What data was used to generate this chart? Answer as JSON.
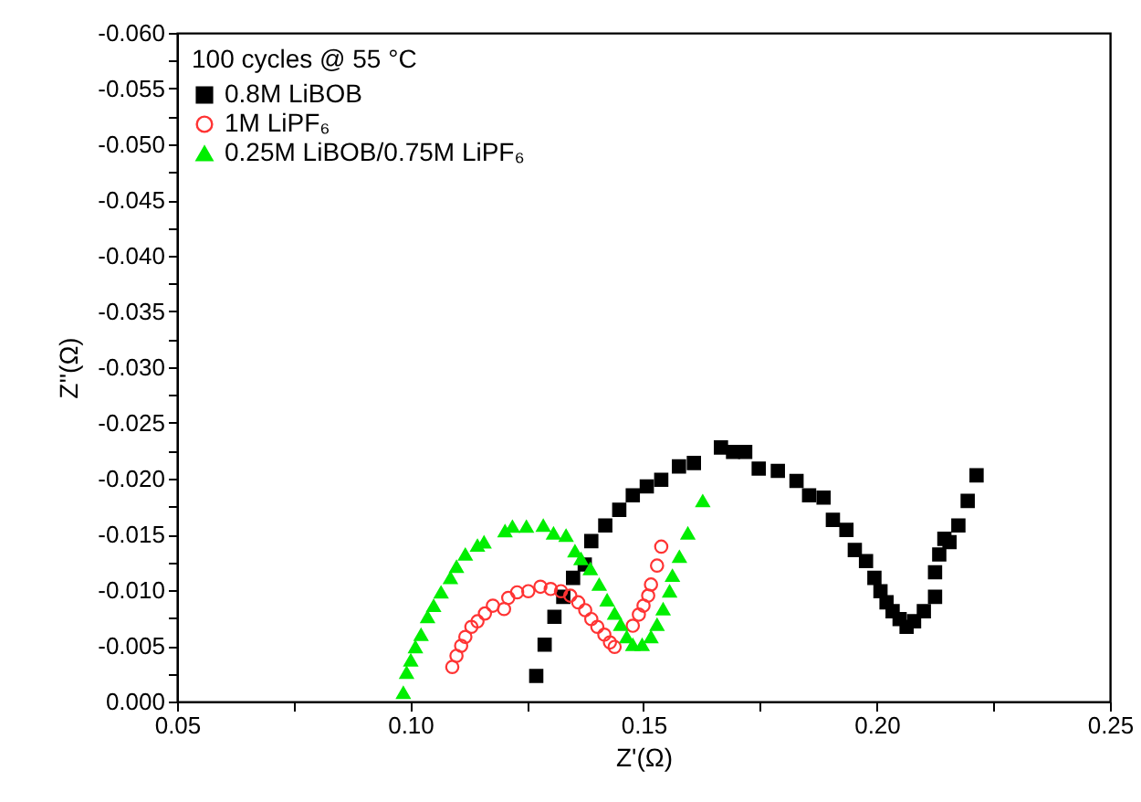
{
  "chart_data": {
    "type": "scatter",
    "xlabel": "Z'(Ω)",
    "ylabel": "Z''(Ω)",
    "legend_title": "100 cycles @ 55 °C",
    "legend": "top left",
    "grid": false,
    "xlim": [
      0.05,
      0.25
    ],
    "xticks": [
      {
        "value": 0.05,
        "label": "0.05"
      },
      {
        "value": 0.075,
        "label": null
      },
      {
        "value": 0.1,
        "label": "0.10"
      },
      {
        "value": 0.125,
        "label": null
      },
      {
        "value": 0.15,
        "label": "0.15"
      },
      {
        "value": 0.175,
        "label": null
      },
      {
        "value": 0.2,
        "label": "0.20"
      },
      {
        "value": 0.225,
        "label": null
      },
      {
        "value": 0.25,
        "label": "0.25"
      }
    ],
    "ylim": [
      0,
      -0.06
    ],
    "yticks": [
      {
        "value": 0,
        "label": "0.000"
      },
      {
        "value": -0.0025,
        "label": null
      },
      {
        "value": -0.005,
        "label": "-0.005"
      },
      {
        "value": -0.0075,
        "label": null
      },
      {
        "value": -0.01,
        "label": "-0.010"
      },
      {
        "value": -0.0125,
        "label": null
      },
      {
        "value": -0.015,
        "label": "-0.015"
      },
      {
        "value": -0.0175,
        "label": null
      },
      {
        "value": -0.02,
        "label": "-0.020"
      },
      {
        "value": -0.0225,
        "label": null
      },
      {
        "value": -0.025,
        "label": "-0.025"
      },
      {
        "value": -0.0275,
        "label": null
      },
      {
        "value": -0.03,
        "label": "-0.030"
      },
      {
        "value": -0.0325,
        "label": null
      },
      {
        "value": -0.035,
        "label": "-0.035"
      },
      {
        "value": -0.0375,
        "label": null
      },
      {
        "value": -0.04,
        "label": "-0.040"
      },
      {
        "value": -0.0425,
        "label": null
      },
      {
        "value": -0.045,
        "label": "-0.045"
      },
      {
        "value": -0.0475,
        "label": null
      },
      {
        "value": -0.05,
        "label": "-0.050"
      },
      {
        "value": -0.0525,
        "label": null
      },
      {
        "value": -0.055,
        "label": "-0.055"
      },
      {
        "value": -0.0575,
        "label": null
      },
      {
        "value": -0.06,
        "label": "-0.060"
      }
    ],
    "series": [
      {
        "name": "0.8M LiBOB",
        "color": "#000000",
        "marker": "square",
        "x": [
          0.127,
          0.1288,
          0.1309,
          0.1328,
          0.1349,
          0.1374,
          0.1388,
          0.1418,
          0.1448,
          0.1477,
          0.1507,
          0.1538,
          0.1576,
          0.1608,
          0.1666,
          0.1692,
          0.1718,
          0.1747,
          0.1788,
          0.1828,
          0.1855,
          0.1886,
          0.1906,
          0.1935,
          0.1953,
          0.1977,
          0.1995,
          0.2008,
          0.2021,
          0.2034,
          0.2049,
          0.2064,
          0.208,
          0.2101,
          0.2125,
          0.2125,
          0.2134,
          0.2145,
          0.2156,
          0.2175,
          0.2195,
          0.2214
        ],
        "values": [
          -0.0023,
          -0.0051,
          -0.0076,
          -0.0094,
          -0.0111,
          -0.0123,
          -0.0144,
          -0.0158,
          -0.0172,
          -0.0185,
          -0.0193,
          -0.0199,
          -0.0211,
          -0.0214,
          -0.0228,
          -0.0224,
          -0.0224,
          -0.0209,
          -0.0207,
          -0.0198,
          -0.0185,
          -0.0183,
          -0.0163,
          -0.0154,
          -0.0136,
          -0.0126,
          -0.0111,
          -0.0099,
          -0.0089,
          -0.0081,
          -0.0074,
          -0.0067,
          -0.0072,
          -0.0081,
          -0.0094,
          -0.0116,
          -0.0132,
          -0.0146,
          -0.0143,
          -0.0158,
          -0.018,
          -0.0203
        ]
      },
      {
        "name": "1M LiPF₆",
        "color": "#ff3333",
        "marker": "circle",
        "x": [
          0.109,
          0.1099,
          0.1109,
          0.1118,
          0.1131,
          0.1144,
          0.116,
          0.1177,
          0.1201,
          0.121,
          0.1229,
          0.1253,
          0.1279,
          0.1301,
          0.1323,
          0.1343,
          0.136,
          0.1375,
          0.1388,
          0.1401,
          0.1416,
          0.1428,
          0.1438,
          0.1477,
          0.149,
          0.15,
          0.151,
          0.1516,
          0.1529,
          0.1538
        ],
        "values": [
          -0.0031,
          -0.0041,
          -0.005,
          -0.0058,
          -0.0067,
          -0.0072,
          -0.0079,
          -0.0086,
          -0.0083,
          -0.0093,
          -0.0098,
          -0.0099,
          -0.0103,
          -0.0101,
          -0.0099,
          -0.0095,
          -0.0089,
          -0.0082,
          -0.0074,
          -0.0067,
          -0.006,
          -0.0053,
          -0.0049,
          -0.0068,
          -0.0078,
          -0.0086,
          -0.0095,
          -0.0105,
          -0.0122,
          -0.0139
        ]
      },
      {
        "name": "0.25M LiBOB/0.75M LiPF₆",
        "color": "#00ee00",
        "marker": "triangle",
        "x": [
          0.0985,
          0.0992,
          0.1001,
          0.1011,
          0.1023,
          0.1037,
          0.105,
          0.1066,
          0.1086,
          0.1099,
          0.1118,
          0.1144,
          0.1158,
          0.1203,
          0.1219,
          0.1249,
          0.1285,
          0.1307,
          0.1334,
          0.1353,
          0.1366,
          0.1386,
          0.1405,
          0.1422,
          0.1438,
          0.1451,
          0.1464,
          0.1477,
          0.1497,
          0.1516,
          0.1529,
          0.1542,
          0.1556,
          0.1562,
          0.1577,
          0.1595,
          0.1627
        ],
        "values": [
          -0.0008,
          -0.0026,
          -0.0037,
          -0.0049,
          -0.006,
          -0.0076,
          -0.0086,
          -0.0098,
          -0.0111,
          -0.0121,
          -0.0132,
          -0.014,
          -0.0143,
          -0.0153,
          -0.0157,
          -0.0157,
          -0.0158,
          -0.0151,
          -0.0149,
          -0.0135,
          -0.0128,
          -0.0119,
          -0.0105,
          -0.0091,
          -0.0079,
          -0.0069,
          -0.0058,
          -0.0051,
          -0.0051,
          -0.0058,
          -0.0069,
          -0.0083,
          -0.0099,
          -0.0113,
          -0.013,
          -0.0151,
          -0.018
        ]
      }
    ]
  }
}
